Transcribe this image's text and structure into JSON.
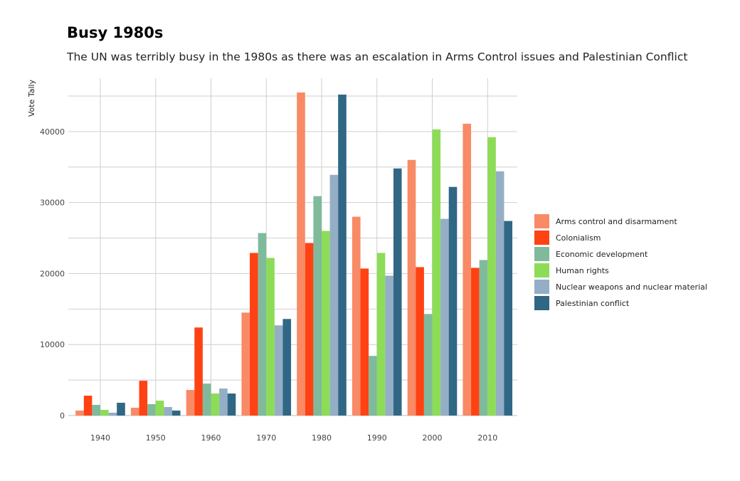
{
  "chart_data": {
    "type": "bar",
    "title": "Busy 1980s",
    "subtitle": "The UN was terribly busy in the 1980s as there was an escalation in Arms Control issues and Palestinian Conflict",
    "xlabel": "",
    "ylabel": "Vote Tally",
    "ylim": [
      0,
      47500
    ],
    "yticks": [
      0,
      10000,
      20000,
      30000,
      40000
    ],
    "grid": true,
    "legend_position": "right",
    "categories": [
      "1940",
      "1950",
      "1960",
      "1970",
      "1980",
      "1990",
      "2000",
      "2010"
    ],
    "series": [
      {
        "name": "Arms control and disarmament",
        "color": "#F88A66",
        "values": [
          700,
          1100,
          3600,
          14500,
          45500,
          28000,
          36000,
          41100
        ]
      },
      {
        "name": "Colonialism",
        "color": "#FF4213",
        "values": [
          2800,
          4900,
          12400,
          22900,
          24300,
          20700,
          20900,
          20800
        ]
      },
      {
        "name": "Economic development",
        "color": "#80BA9C",
        "values": [
          1500,
          1600,
          4500,
          25700,
          30900,
          8400,
          14300,
          21900
        ]
      },
      {
        "name": "Human rights",
        "color": "#8DDC58",
        "values": [
          800,
          2100,
          3100,
          22200,
          26000,
          22900,
          40300,
          39200
        ]
      },
      {
        "name": "Nuclear weapons and nuclear material",
        "color": "#94AEC6",
        "values": [
          400,
          1200,
          3800,
          12700,
          33900,
          19700,
          27700,
          34400
        ]
      },
      {
        "name": "Palestinian conflict",
        "color": "#306784",
        "values": [
          1800,
          700,
          3100,
          13600,
          45200,
          34800,
          32200,
          27400
        ]
      }
    ]
  }
}
